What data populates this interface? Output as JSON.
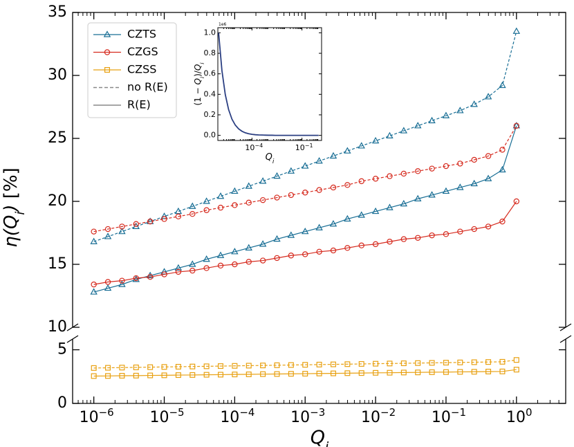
{
  "chart_data": {
    "type": "line",
    "log_x": true,
    "xlim": [
      5e-07,
      5
    ],
    "xticks": [
      {
        "value": 1e-06,
        "label": "10",
        "sup": "−6"
      },
      {
        "value": 1e-05,
        "label": "10",
        "sup": "−5"
      },
      {
        "value": 0.0001,
        "label": "10",
        "sup": "−4"
      },
      {
        "value": 0.001,
        "label": "10",
        "sup": "−3"
      },
      {
        "value": 0.01,
        "label": "10",
        "sup": "−2"
      },
      {
        "value": 0.1,
        "label": "10",
        "sup": "−1"
      },
      {
        "value": 1,
        "label": "10",
        "sup": "0"
      }
    ],
    "minor_xticks": true,
    "xlabel": [
      {
        "text": "Q",
        "italic": true
      },
      {
        "text": "i",
        "italic": true,
        "sub": true
      }
    ],
    "ylabel": [
      {
        "text": "η(Q",
        "italic": true
      },
      {
        "text": "i",
        "italic": true,
        "sub": true
      },
      {
        "text": ")",
        "italic": true
      },
      {
        "text": " [%]"
      }
    ],
    "panels": [
      {
        "ylim": [
          10,
          35
        ],
        "yticks": [
          10,
          15,
          20,
          25,
          30,
          35
        ]
      },
      {
        "ylim": [
          0,
          6
        ],
        "yticks": [
          0,
          5
        ]
      }
    ],
    "x": [
      1e-06,
      1.585e-06,
      2.512e-06,
      3.981e-06,
      6.31e-06,
      1e-05,
      1.585e-05,
      2.512e-05,
      3.981e-05,
      6.31e-05,
      0.0001,
      0.0001585,
      0.0002512,
      0.0003981,
      0.000631,
      0.001,
      0.001585,
      0.002512,
      0.003981,
      0.00631,
      0.01,
      0.01585,
      0.02512,
      0.03981,
      0.0631,
      0.1,
      0.1585,
      0.2512,
      0.3981,
      0.631,
      1
    ],
    "styles": [
      {
        "name": "no R(E)",
        "dashed": true
      },
      {
        "name": "R(E)",
        "dashed": false
      }
    ],
    "materials": [
      {
        "name": "CZTS",
        "color": "#176d94",
        "marker": "triangle",
        "values": [
          [
            16.8,
            17.2,
            17.6,
            18.0,
            18.4,
            18.8,
            19.2,
            19.6,
            20.0,
            20.4,
            20.8,
            21.2,
            21.6,
            22.0,
            22.4,
            22.8,
            23.2,
            23.6,
            24.0,
            24.4,
            24.8,
            25.2,
            25.6,
            26.0,
            26.4,
            26.8,
            27.2,
            27.7,
            28.3,
            29.2,
            33.5
          ],
          [
            12.8,
            13.1,
            13.4,
            13.8,
            14.1,
            14.4,
            14.7,
            15.0,
            15.4,
            15.7,
            16.0,
            16.3,
            16.6,
            17.0,
            17.3,
            17.6,
            17.9,
            18.2,
            18.6,
            18.9,
            19.2,
            19.5,
            19.8,
            20.2,
            20.5,
            20.8,
            21.1,
            21.4,
            21.8,
            22.5,
            26.0
          ]
        ]
      },
      {
        "name": "CZGS",
        "color": "#d62a1e",
        "marker": "circle",
        "values": [
          [
            17.6,
            17.8,
            18.0,
            18.2,
            18.4,
            18.6,
            18.8,
            19.0,
            19.3,
            19.5,
            19.7,
            19.9,
            20.1,
            20.3,
            20.5,
            20.7,
            20.9,
            21.1,
            21.3,
            21.6,
            21.8,
            22.0,
            22.2,
            22.4,
            22.6,
            22.8,
            23.0,
            23.3,
            23.6,
            24.1,
            26.0
          ],
          [
            13.4,
            13.6,
            13.7,
            13.9,
            14.0,
            14.2,
            14.4,
            14.5,
            14.7,
            14.9,
            15.0,
            15.2,
            15.3,
            15.5,
            15.7,
            15.8,
            16.0,
            16.1,
            16.3,
            16.5,
            16.6,
            16.8,
            17.0,
            17.1,
            17.3,
            17.4,
            17.6,
            17.8,
            18.0,
            18.4,
            20.0
          ]
        ]
      },
      {
        "name": "CZSS",
        "color": "#e8a010",
        "marker": "square",
        "values": [
          [
            3.3,
            3.32,
            3.34,
            3.36,
            3.38,
            3.4,
            3.42,
            3.44,
            3.46,
            3.48,
            3.5,
            3.52,
            3.54,
            3.56,
            3.58,
            3.6,
            3.62,
            3.64,
            3.66,
            3.68,
            3.7,
            3.72,
            3.74,
            3.76,
            3.78,
            3.8,
            3.82,
            3.84,
            3.86,
            3.88,
            4.05
          ],
          [
            2.55,
            2.56,
            2.58,
            2.59,
            2.61,
            2.62,
            2.64,
            2.65,
            2.67,
            2.68,
            2.7,
            2.71,
            2.73,
            2.74,
            2.76,
            2.77,
            2.79,
            2.8,
            2.82,
            2.83,
            2.85,
            2.86,
            2.88,
            2.89,
            2.91,
            2.92,
            2.94,
            2.95,
            2.97,
            2.98,
            3.15
          ]
        ]
      }
    ],
    "style_color": "#888888",
    "inset": {
      "color": "#2b3f82",
      "xlim": [
        9e-07,
        1.5
      ],
      "xticks": [
        {
          "value": 0.0001,
          "label": "10",
          "sup": "−4"
        },
        {
          "value": 0.1,
          "label": "10",
          "sup": "−1"
        }
      ],
      "ylim": [
        -0.05,
        1.05
      ],
      "yticks": [
        {
          "value": 0,
          "label": "0.0"
        },
        {
          "value": 0.2,
          "label": "0.2"
        },
        {
          "value": 0.4,
          "label": "0.4"
        },
        {
          "value": 0.6,
          "label": "0.6"
        },
        {
          "value": 0.8,
          "label": "0.8"
        },
        {
          "value": 1,
          "label": "1.0"
        }
      ],
      "offset_text": "1e6",
      "xlabel": [
        {
          "text": "Q",
          "italic": true
        },
        {
          "text": "i",
          "italic": true,
          "sub": true
        }
      ],
      "ylabel": [
        {
          "text": "(1 − "
        },
        {
          "text": "Q",
          "italic": true
        },
        {
          "text": "i",
          "italic": true,
          "sub": true
        },
        {
          "text": ")/"
        },
        {
          "text": "Q",
          "italic": true
        },
        {
          "text": "i",
          "italic": true,
          "sub": true
        }
      ],
      "values": [
        1.0,
        0.631,
        0.398,
        0.251,
        0.158,
        0.1,
        0.063,
        0.04,
        0.025,
        0.016,
        0.01,
        0.006,
        0.004,
        0.003,
        0.002,
        0.001,
        0.001,
        0,
        0,
        0,
        0,
        0,
        0,
        0,
        0,
        0,
        0,
        0,
        0,
        0,
        0
      ]
    }
  }
}
